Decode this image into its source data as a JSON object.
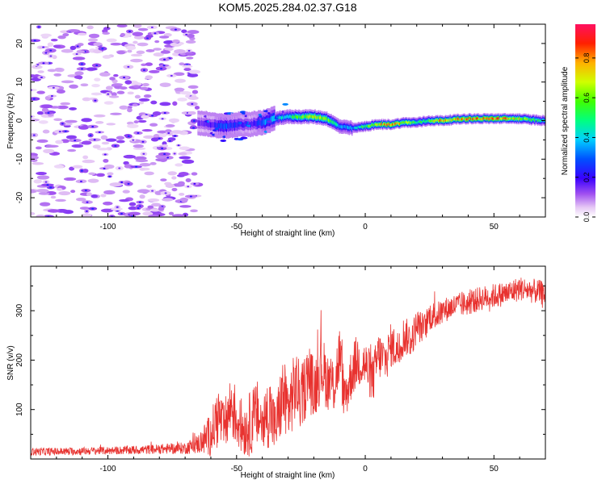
{
  "title": "KOM5.2025.284.02.37.G18",
  "chart_data": [
    {
      "type": "heatmap",
      "title": "KOM5.2025.284.02.37.G18",
      "xlabel": "Height of straight line (km)",
      "ylabel": "Frequency (Hz)",
      "xlim": [
        -130,
        70
      ],
      "ylim": [
        -25,
        25
      ],
      "xticks": [
        -100,
        -50,
        0,
        50
      ],
      "yticks": [
        -20,
        -10,
        0,
        10,
        20
      ],
      "xtick_labels": [
        "-100",
        "-50",
        "0",
        "50"
      ],
      "ytick_labels": [
        "-20",
        "-10",
        "0",
        "10",
        "20"
      ],
      "colorbar": {
        "label": "Normalized spectral amplitude",
        "range": [
          0,
          0.97
        ],
        "ticks": [
          0.0,
          0.2,
          0.4,
          0.6,
          0.8
        ],
        "tick_labels": [
          "0.0",
          "0.2",
          "0.4",
          "0.6",
          "0.8"
        ]
      },
      "noise_region": {
        "x": [
          -130,
          -65
        ],
        "amplitude": 0.08
      },
      "ridge": {
        "description_points_x": [
          -65,
          -60,
          -55,
          -50,
          -45,
          -40,
          -35,
          -30,
          -25,
          -20,
          -15,
          -10,
          -5,
          0,
          5,
          10,
          15,
          20,
          25,
          30,
          35,
          40,
          45,
          50,
          55,
          60,
          65,
          70
        ],
        "frequency_hz": [
          -0.5,
          -1.0,
          -1.5,
          -1.0,
          -1.0,
          -0.5,
          0.5,
          1.0,
          1.0,
          1.0,
          0.5,
          -1.5,
          -2.0,
          -1.5,
          -1.0,
          -1.0,
          -0.5,
          -0.5,
          0.0,
          0.0,
          0.3,
          0.5,
          0.5,
          0.5,
          0.5,
          0.5,
          0.2,
          0.0
        ],
        "amplitude": [
          0.15,
          0.2,
          0.3,
          0.25,
          0.2,
          0.3,
          0.4,
          0.45,
          0.6,
          0.7,
          0.6,
          0.4,
          0.35,
          0.6,
          0.75,
          0.85,
          0.7,
          0.55,
          0.6,
          0.85,
          0.75,
          0.8,
          0.8,
          0.85,
          0.8,
          0.7,
          0.55,
          0.45
        ]
      }
    },
    {
      "type": "line",
      "xlabel": "Height of straight line (km)",
      "ylabel": "SNR (v/v)",
      "xlim": [
        -130,
        70
      ],
      "ylim": [
        0,
        390
      ],
      "xticks": [
        -100,
        -50,
        0,
        50
      ],
      "yticks": [
        100,
        200,
        300
      ],
      "xtick_labels": [
        "-100",
        "-50",
        "0",
        "50"
      ],
      "ytick_labels": [
        "100",
        "200",
        "300"
      ],
      "series": [
        {
          "name": "SNR",
          "color": "#e8322f",
          "x": [
            -130,
            -120,
            -110,
            -100,
            -90,
            -80,
            -70,
            -65,
            -60,
            -57,
            -55,
            -52,
            -50,
            -47,
            -45,
            -42,
            -40,
            -37,
            -35,
            -32,
            -30,
            -27,
            -25,
            -22,
            -20,
            -17,
            -15,
            -12,
            -10,
            -8,
            -5,
            -3,
            0,
            3,
            5,
            8,
            10,
            13,
            15,
            18,
            20,
            23,
            25,
            28,
            30,
            35,
            40,
            45,
            50,
            55,
            60,
            65,
            70
          ],
          "values": [
            15,
            15,
            16,
            17,
            18,
            20,
            22,
            30,
            50,
            90,
            60,
            110,
            80,
            60,
            70,
            90,
            70,
            100,
            60,
            130,
            100,
            150,
            120,
            170,
            140,
            190,
            160,
            150,
            210,
            120,
            180,
            200,
            190,
            160,
            210,
            200,
            230,
            220,
            250,
            240,
            270,
            265,
            290,
            290,
            300,
            310,
            315,
            325,
            330,
            335,
            345,
            340,
            335
          ],
          "noise_amplitude": [
            8,
            8,
            8,
            8,
            9,
            10,
            12,
            20,
            45,
            60,
            50,
            70,
            60,
            55,
            65,
            70,
            60,
            75,
            55,
            80,
            70,
            75,
            65,
            70,
            65,
            70,
            60,
            60,
            65,
            50,
            55,
            55,
            50,
            50,
            50,
            45,
            45,
            40,
            40,
            35,
            35,
            30,
            30,
            28,
            25,
            25,
            25,
            25,
            25,
            25,
            25,
            25,
            25
          ]
        }
      ]
    }
  ]
}
